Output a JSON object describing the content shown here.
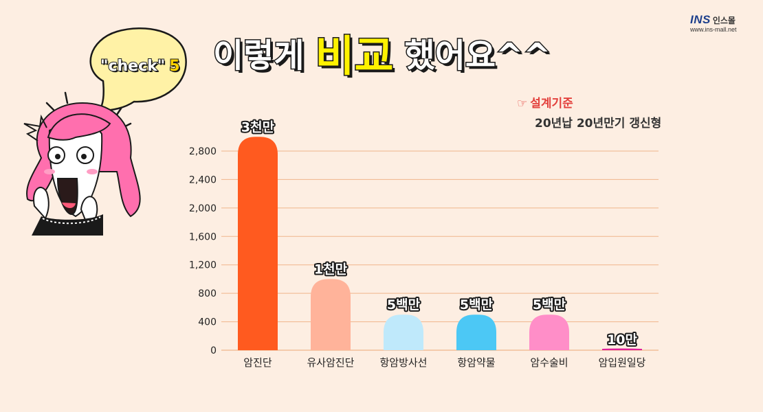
{
  "brand": {
    "logo_mark": "INS",
    "logo_text": "인스몰",
    "url": "www.ins-mall.net"
  },
  "title": {
    "part1": "이렇게",
    "highlight": "비교",
    "part2": "했어요^^"
  },
  "bubble": {
    "text": "\"check\"",
    "number": "5"
  },
  "criteria": {
    "icon": "pointing-hand-icon",
    "title": "설계기준",
    "detail": "20년납 20년만기 갱신형"
  },
  "colors": {
    "background": "#fdeee2",
    "gridline": "#f0b48a",
    "accent_red": "#e3413d",
    "title_highlight": "#fff200"
  },
  "chart_data": {
    "type": "bar",
    "title": "",
    "xlabel": "",
    "ylabel": "",
    "ylim": [
      0,
      2800
    ],
    "yticks": [
      0,
      400,
      800,
      1200,
      1600,
      2000,
      2400,
      2800
    ],
    "ytick_labels": [
      "0",
      "400",
      "800",
      "1,200",
      "1,600",
      "2,000",
      "2,400",
      "2,800"
    ],
    "grid": true,
    "categories": [
      "암진단",
      "유사암진단",
      "항암방사선",
      "항암약물",
      "암수술비",
      "암입원일당"
    ],
    "values": [
      3000,
      1000,
      500,
      500,
      500,
      10
    ],
    "data_labels": [
      "3천만",
      "1천만",
      "5백만",
      "5백만",
      "5백만",
      "10만"
    ],
    "bar_colors": [
      "#ff5a1f",
      "#ffb39a",
      "#bfe9fb",
      "#4cc8f5",
      "#ff8ec8",
      "#e0209a"
    ]
  }
}
